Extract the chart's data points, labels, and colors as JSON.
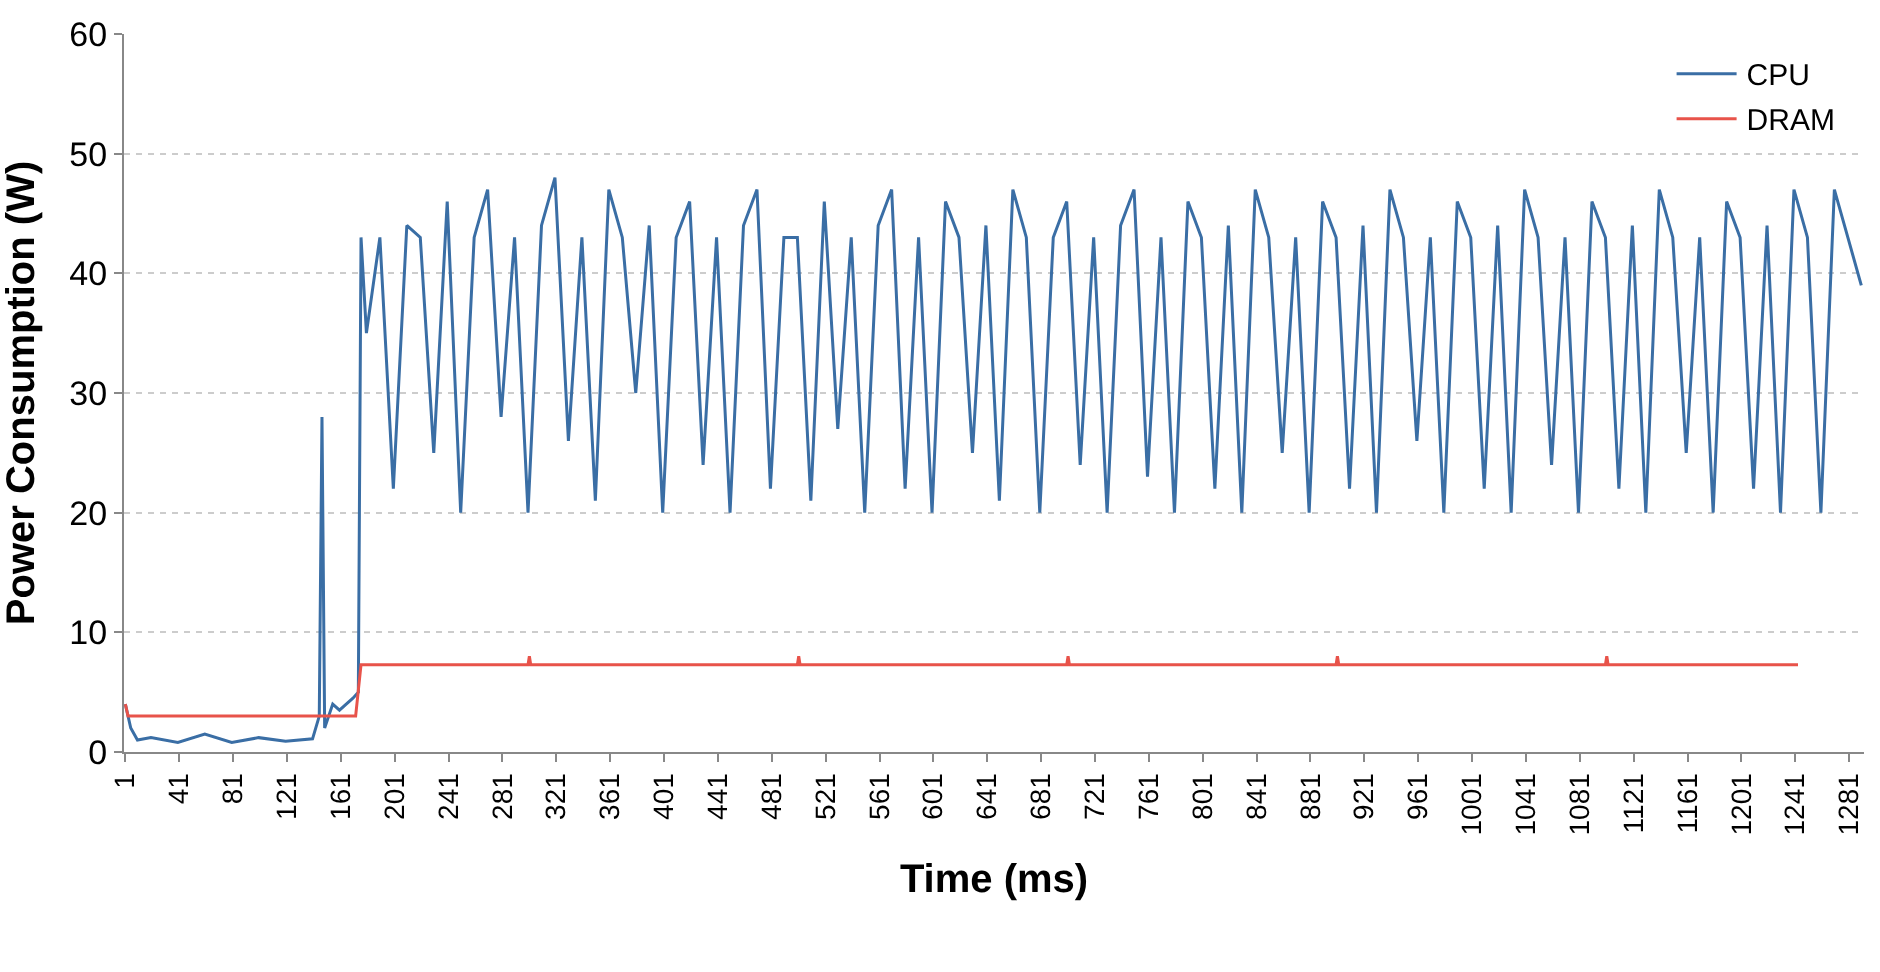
{
  "chart_data": {
    "type": "line",
    "xlabel": "Time (ms)",
    "ylabel": "Power Consumption (W)",
    "xlim": [
      0,
      1292
    ],
    "ylim": [
      0,
      60
    ],
    "yticks": [
      0,
      10,
      20,
      30,
      40,
      50,
      60
    ],
    "xticks": [
      1,
      41,
      81,
      121,
      161,
      201,
      241,
      281,
      321,
      361,
      401,
      441,
      481,
      521,
      561,
      601,
      641,
      681,
      721,
      761,
      801,
      841,
      881,
      921,
      961,
      1001,
      1041,
      1081,
      1121,
      1161,
      1201,
      1241,
      1281
    ],
    "grid": "y",
    "legend": "top right",
    "marker": "none",
    "line_style": "solid",
    "series": [
      {
        "name": "CPU",
        "color": "#3a6ea5",
        "x": [
          1,
          5,
          10,
          20,
          40,
          60,
          80,
          100,
          120,
          140,
          145,
          147,
          149,
          155,
          160,
          165,
          170,
          174,
          176,
          180,
          190,
          200,
          210,
          220,
          230,
          240,
          250,
          260,
          270,
          280,
          290,
          300,
          310,
          320,
          330,
          340,
          350,
          360,
          370,
          380,
          390,
          400,
          410,
          420,
          430,
          440,
          450,
          460,
          470,
          480,
          490,
          500,
          510,
          520,
          530,
          540,
          550,
          560,
          570,
          580,
          590,
          600,
          610,
          620,
          630,
          640,
          650,
          660,
          670,
          680,
          690,
          700,
          710,
          720,
          730,
          740,
          750,
          760,
          770,
          780,
          790,
          800,
          810,
          820,
          830,
          840,
          850,
          860,
          870,
          880,
          890,
          900,
          910,
          920,
          930,
          940,
          950,
          960,
          970,
          980,
          990,
          1000,
          1010,
          1020,
          1030,
          1040,
          1050,
          1060,
          1070,
          1080,
          1090,
          1100,
          1110,
          1120,
          1130,
          1140,
          1150,
          1160,
          1170,
          1180,
          1190,
          1200,
          1210,
          1220,
          1230,
          1240,
          1250,
          1260,
          1270,
          1280,
          1290
        ],
        "values": [
          4,
          2,
          1,
          1.2,
          0.8,
          1.5,
          0.8,
          1.2,
          0.9,
          1.1,
          3,
          28,
          2,
          4,
          3.5,
          4,
          4.5,
          5,
          43,
          35,
          43,
          22,
          44,
          43,
          25,
          46,
          20,
          43,
          47,
          28,
          43,
          20,
          44,
          48,
          26,
          43,
          21,
          47,
          43,
          30,
          44,
          20,
          43,
          46,
          24,
          43,
          20,
          44,
          47,
          22,
          43,
          43,
          21,
          46,
          27,
          43,
          20,
          44,
          47,
          22,
          43,
          20,
          46,
          43,
          25,
          44,
          21,
          47,
          43,
          20,
          43,
          46,
          24,
          43,
          20,
          44,
          47,
          23,
          43,
          20,
          46,
          43,
          22,
          44,
          20,
          47,
          43,
          25,
          43,
          20,
          46,
          43,
          22,
          44,
          20,
          47,
          43,
          26,
          43,
          20,
          46,
          43,
          22,
          44,
          20,
          47,
          43,
          24,
          43,
          20,
          46,
          43,
          22,
          44,
          20,
          47,
          43,
          25,
          43,
          20,
          46,
          43,
          22,
          44,
          20,
          47,
          43,
          20,
          47,
          43,
          39
        ]
      },
      {
        "name": "DRAM",
        "color": "#e8534a",
        "x": [
          1,
          3,
          10,
          100,
          172,
          176,
          180,
          300,
          301,
          302,
          500,
          501,
          502,
          700,
          701,
          702,
          900,
          901,
          902,
          1100,
          1101,
          1102,
          1243
        ],
        "values": [
          4,
          3,
          3,
          3,
          3,
          7.3,
          7.3,
          7.3,
          8,
          7.3,
          7.3,
          8,
          7.3,
          7.3,
          8,
          7.3,
          7.3,
          8,
          7.3,
          7.3,
          8,
          7.3,
          7.3
        ]
      }
    ]
  }
}
